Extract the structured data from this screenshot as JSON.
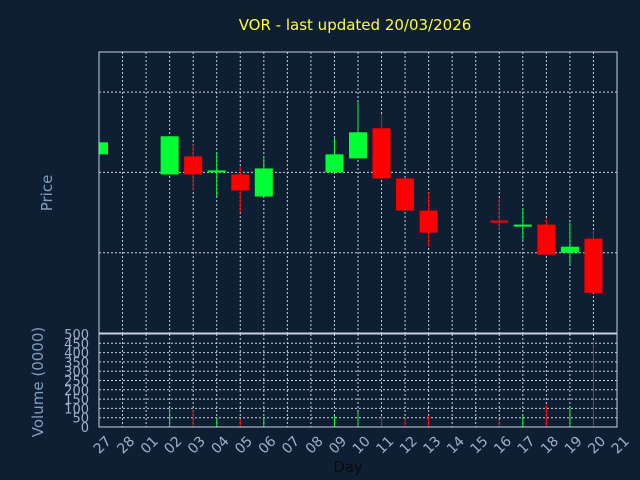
{
  "chart_data": [
    {
      "type": "candlestick",
      "title": "VOR - last updated 20/03/2026",
      "ylabel": "Price",
      "ylim": [
        11.0,
        18.0
      ],
      "yticks": [
        "13",
        "15",
        "17"
      ],
      "ytick_values": [
        13,
        15,
        17
      ],
      "grid": true,
      "categories": [
        "27",
        "28",
        "01",
        "02",
        "03",
        "04",
        "05",
        "06",
        "07",
        "08",
        "09",
        "10",
        "11",
        "12",
        "13",
        "14",
        "15",
        "16",
        "17",
        "18",
        "19",
        "20",
        "21"
      ],
      "candles": [
        {
          "x": "27",
          "open": 15.45,
          "close": 15.75,
          "high": 15.75,
          "low": 15.45
        },
        {
          "x": "02",
          "open": 14.95,
          "close": 15.9,
          "high": 15.9,
          "low": 14.95
        },
        {
          "x": "03",
          "open": 15.4,
          "close": 14.95,
          "high": 15.7,
          "low": 14.55
        },
        {
          "x": "04",
          "open": 15.0,
          "close": 15.05,
          "high": 15.5,
          "low": 14.4
        },
        {
          "x": "05",
          "open": 14.95,
          "close": 14.55,
          "high": 15.15,
          "low": 14.0
        },
        {
          "x": "06",
          "open": 14.4,
          "close": 15.1,
          "high": 15.4,
          "low": 14.4
        },
        {
          "x": "09",
          "open": 15.0,
          "close": 15.45,
          "high": 15.85,
          "low": 15.0
        },
        {
          "x": "10",
          "open": 15.35,
          "close": 16.0,
          "high": 16.75,
          "low": 15.35
        },
        {
          "x": "11",
          "open": 16.1,
          "close": 14.85,
          "high": 16.45,
          "low": 14.85
        },
        {
          "x": "12",
          "open": 14.85,
          "close": 14.05,
          "high": 14.85,
          "low": 14.05
        },
        {
          "x": "13",
          "open": 14.05,
          "close": 13.5,
          "high": 14.5,
          "low": 13.15
        },
        {
          "x": "16",
          "open": 13.8,
          "close": 13.75,
          "high": 14.35,
          "low": 13.55
        },
        {
          "x": "17",
          "open": 13.65,
          "close": 13.7,
          "high": 14.1,
          "low": 13.3
        },
        {
          "x": "18",
          "open": 13.7,
          "close": 12.95,
          "high": 13.85,
          "low": 12.95
        },
        {
          "x": "19",
          "open": 13.0,
          "close": 13.15,
          "high": 13.75,
          "low": 12.7
        },
        {
          "x": "20",
          "open": 13.35,
          "close": 12.0,
          "high": 13.55,
          "low": 12.0
        }
      ],
      "up_color": "#00ff33",
      "down_color": "#ff0000"
    },
    {
      "type": "bar",
      "ylabel": "Volume (0000)",
      "xlabel": "Day",
      "ylim": [
        0,
        500
      ],
      "yticks": [
        "0",
        "50",
        "100",
        "150",
        "200",
        "250",
        "300",
        "350",
        "400",
        "450",
        "500"
      ],
      "ytick_values": [
        0,
        50,
        100,
        150,
        200,
        250,
        300,
        350,
        400,
        450,
        500
      ],
      "categories": [
        "27",
        "28",
        "01",
        "02",
        "03",
        "04",
        "05",
        "06",
        "07",
        "08",
        "09",
        "10",
        "11",
        "12",
        "13",
        "14",
        "15",
        "16",
        "17",
        "18",
        "19",
        "20",
        "21"
      ],
      "bars": [
        {
          "x": "27",
          "value": 20,
          "color": "#ff0000"
        },
        {
          "x": "02",
          "value": 100,
          "color": "#00ff33"
        },
        {
          "x": "03",
          "value": 90,
          "color": "#ff0000"
        },
        {
          "x": "04",
          "value": 50,
          "color": "#00ff33"
        },
        {
          "x": "05",
          "value": 45,
          "color": "#ff0000"
        },
        {
          "x": "06",
          "value": 55,
          "color": "#00ff33"
        },
        {
          "x": "09",
          "value": 60,
          "color": "#00ff33"
        },
        {
          "x": "10",
          "value": 80,
          "color": "#00ff33"
        },
        {
          "x": "11",
          "value": 60,
          "color": "#ff0000"
        },
        {
          "x": "12",
          "value": 45,
          "color": "#ff0000"
        },
        {
          "x": "13",
          "value": 60,
          "color": "#ff0000"
        },
        {
          "x": "16",
          "value": 40,
          "color": "#ff0000"
        },
        {
          "x": "17",
          "value": 60,
          "color": "#00ff33"
        },
        {
          "x": "18",
          "value": 120,
          "color": "#ff0000"
        },
        {
          "x": "19",
          "value": 100,
          "color": "#00ff33"
        },
        {
          "x": "20",
          "value": 460,
          "color": "#ff0000"
        }
      ]
    }
  ]
}
